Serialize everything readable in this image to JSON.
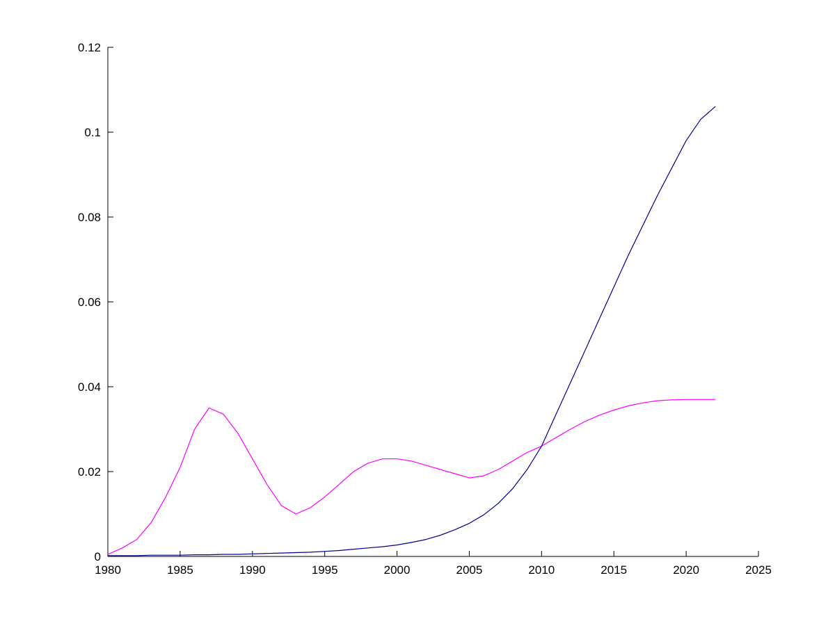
{
  "figure": {
    "background": "#ffffff",
    "axis_color": "#000000",
    "text_color": "#000000"
  },
  "chart_data": {
    "type": "line",
    "title": "",
    "xlabel": "",
    "ylabel": "",
    "grid": false,
    "legend": "none",
    "xlim": [
      1980,
      2025
    ],
    "ylim": [
      0,
      0.12
    ],
    "xticks": [
      1980,
      1985,
      1990,
      1995,
      2000,
      2005,
      2010,
      2015,
      2020,
      2025
    ],
    "xtick_labels": [
      "1980",
      "1985",
      "1990",
      "1995",
      "2000",
      "2005",
      "2010",
      "2015",
      "2020",
      "2025"
    ],
    "yticks": [
      0,
      0.02,
      0.04,
      0.06,
      0.08,
      0.1,
      0.12
    ],
    "ytick_labels": [
      "0",
      "0.02",
      "0.04",
      "0.06",
      "0.08",
      "0.1",
      "0.12"
    ],
    "x": [
      1980,
      1981,
      1982,
      1983,
      1984,
      1985,
      1986,
      1987,
      1988,
      1989,
      1990,
      1991,
      1992,
      1993,
      1994,
      1995,
      1996,
      1997,
      1998,
      1999,
      2000,
      2001,
      2002,
      2003,
      2004,
      2005,
      2006,
      2007,
      2008,
      2009,
      2010,
      2011,
      2012,
      2013,
      2014,
      2015,
      2016,
      2017,
      2018,
      2019,
      2020,
      2021,
      2022
    ],
    "series": [
      {
        "name": "magenta-line",
        "color": "#FF00FF",
        "values": [
          0.0005,
          0.002,
          0.004,
          0.008,
          0.014,
          0.021,
          0.03,
          0.035,
          0.0335,
          0.029,
          0.023,
          0.017,
          0.012,
          0.01,
          0.0115,
          0.014,
          0.017,
          0.02,
          0.022,
          0.023,
          0.023,
          0.0225,
          0.0215,
          0.0205,
          0.0195,
          0.0185,
          0.019,
          0.0205,
          0.0225,
          0.0245,
          0.026,
          0.028,
          0.03,
          0.0318,
          0.0333,
          0.0345,
          0.0355,
          0.0362,
          0.0367,
          0.0369,
          0.037,
          0.037,
          0.037
        ]
      },
      {
        "name": "dark-blue-line",
        "color": "#00008B",
        "values": [
          0.0002,
          0.0002,
          0.0002,
          0.0003,
          0.0003,
          0.0003,
          0.0004,
          0.0004,
          0.0005,
          0.0005,
          0.0006,
          0.0007,
          0.0008,
          0.0009,
          0.001,
          0.0012,
          0.0014,
          0.0017,
          0.002,
          0.0023,
          0.0027,
          0.0033,
          0.004,
          0.005,
          0.0063,
          0.0078,
          0.0098,
          0.0125,
          0.016,
          0.0205,
          0.026,
          0.0335,
          0.041,
          0.0485,
          0.056,
          0.0635,
          0.071,
          0.078,
          0.085,
          0.0915,
          0.098,
          0.103,
          0.106
        ]
      }
    ]
  }
}
